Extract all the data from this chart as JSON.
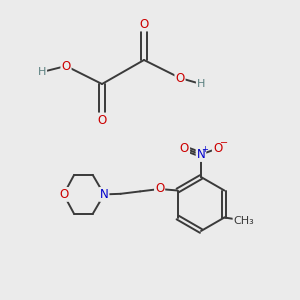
{
  "bg_color": "#ebebeb",
  "atom_colors": {
    "C": "#3a3a3a",
    "O": "#cc0000",
    "N": "#0000cc",
    "H": "#5a8080",
    "default": "#3a3a3a"
  },
  "bond_color": "#3a3a3a",
  "bond_width": 1.4,
  "dbo": 0.01
}
